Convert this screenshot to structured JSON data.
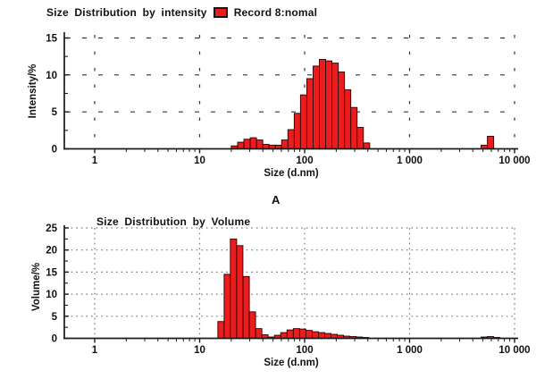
{
  "panel_label": "A",
  "chart_data": [
    {
      "type": "bar",
      "title": "Size Distribution by intensity",
      "legend": {
        "label": "Record 8:nomal",
        "swatch_color": "#ed1c1c",
        "position": "right-of-title"
      },
      "xlabel": "Size (d.nm)",
      "ylabel": "Intensity/%",
      "x_scale": "log",
      "xlim": [
        0.5,
        10600
      ],
      "ylim": [
        0,
        15.5
      ],
      "y_ticks": [
        0,
        5,
        10,
        15
      ],
      "x_ticks": [
        {
          "v": 1,
          "label": "1"
        },
        {
          "v": 10,
          "label": "10"
        },
        {
          "v": 100,
          "label": "100"
        },
        {
          "v": 1000,
          "label": "1 000"
        },
        {
          "v": 10000,
          "label": "10 000"
        }
      ],
      "grid": "dashed",
      "bar_color": "#ed1c1c",
      "bar_edge_color": "#2b0000",
      "bin_ratio": 1.148,
      "bars": [
        [
          20.0,
          0.4
        ],
        [
          23.0,
          0.9
        ],
        [
          26.4,
          1.3
        ],
        [
          30.3,
          1.5
        ],
        [
          34.8,
          1.2
        ],
        [
          39.9,
          0.6
        ],
        [
          45.8,
          0.5
        ],
        [
          52.6,
          0.5
        ],
        [
          60.4,
          1.2
        ],
        [
          69.3,
          2.6
        ],
        [
          79.6,
          4.8
        ],
        [
          91.3,
          7.3
        ],
        [
          104.9,
          9.5
        ],
        [
          120.4,
          11.2
        ],
        [
          138.2,
          12.1
        ],
        [
          158.6,
          11.9
        ],
        [
          182.1,
          11.6
        ],
        [
          209.0,
          10.4
        ],
        [
          240.0,
          8.0
        ],
        [
          275.5,
          5.6
        ],
        [
          316.2,
          2.9
        ],
        [
          363.0,
          0.8
        ],
        [
          4800,
          0.5
        ],
        [
          5510,
          1.7
        ]
      ]
    },
    {
      "type": "bar",
      "title": "Size Distribution by Volume",
      "xlabel": "Size (d.nm)",
      "ylabel": "Volume/%",
      "x_scale": "log",
      "xlim": [
        0.5,
        10600
      ],
      "ylim": [
        0,
        25.8
      ],
      "y_ticks": [
        0,
        5,
        10,
        15,
        20,
        25
      ],
      "x_ticks": [
        {
          "v": 1,
          "label": "1"
        },
        {
          "v": 10,
          "label": "10"
        },
        {
          "v": 100,
          "label": "100"
        },
        {
          "v": 1000,
          "label": "1 000"
        },
        {
          "v": 10000,
          "label": "10 000"
        }
      ],
      "grid": "dotted",
      "bar_color": "#ed1c1c",
      "bar_edge_color": "#2b0000",
      "bin_ratio": 1.148,
      "bars": [
        [
          14.9,
          3.8
        ],
        [
          17.1,
          14.5
        ],
        [
          19.6,
          22.5
        ],
        [
          22.5,
          21.0
        ],
        [
          25.9,
          14.0
        ],
        [
          29.7,
          6.0
        ],
        [
          34.1,
          2.2
        ],
        [
          39.1,
          0.8
        ],
        [
          44.9,
          0.3
        ],
        [
          51.6,
          0.7
        ],
        [
          59.2,
          1.3
        ],
        [
          68.0,
          1.9
        ],
        [
          78.0,
          2.2
        ],
        [
          89.6,
          2.1
        ],
        [
          102.8,
          1.8
        ],
        [
          118.0,
          1.5
        ],
        [
          135.5,
          1.3
        ],
        [
          155.5,
          1.1
        ],
        [
          178.5,
          0.9
        ],
        [
          204.9,
          0.7
        ],
        [
          235.3,
          0.5
        ],
        [
          270.1,
          0.4
        ],
        [
          310.0,
          0.3
        ],
        [
          355.9,
          0.2
        ],
        [
          4800,
          0.3
        ],
        [
          5510,
          0.4
        ],
        [
          6330,
          0.2
        ]
      ]
    }
  ]
}
